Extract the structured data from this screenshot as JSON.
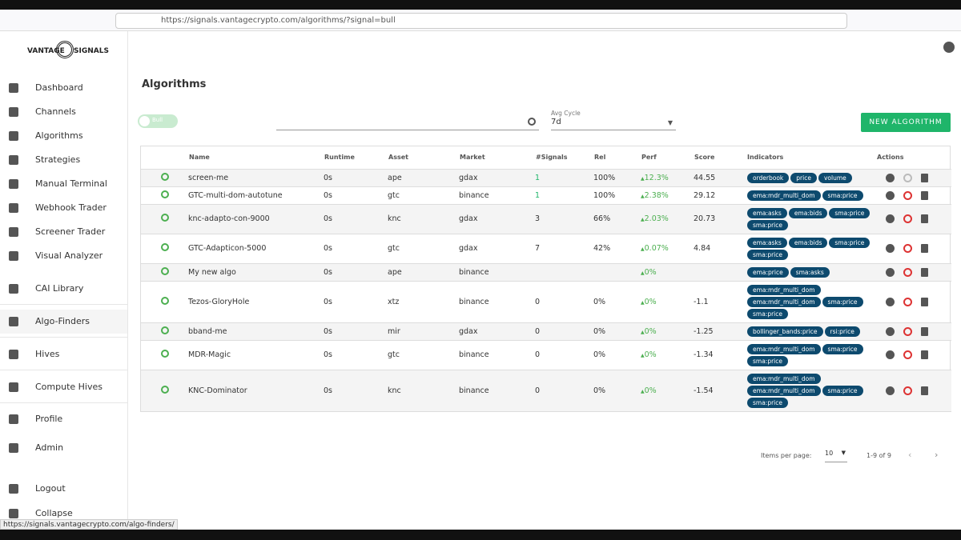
{
  "browser": {
    "url": "https://signals.vantagecrypto.com/algorithms/?signal=bull",
    "status_url": "https://signals.vantagecrypto.com/algo-finders/"
  },
  "logo": {
    "left": "VANTAGE",
    "right": "SIGNALS"
  },
  "sidebar": {
    "items": [
      "Dashboard",
      "Channels",
      "Algorithms",
      "Strategies",
      "Manual Terminal",
      "Webhook Trader",
      "Screener Trader",
      "Visual Analyzer",
      "CAI Library",
      "Algo-Finders",
      "Hives",
      "Compute Hives",
      "Profile",
      "Admin",
      "Logout",
      "Collapse"
    ]
  },
  "header": {
    "title": "Algorithms",
    "toggle_label": "Bull",
    "avg_cycle_label": "Avg Cycle",
    "avg_cycle_value": "7d",
    "new_button": "NEW ALGORITHM"
  },
  "table": {
    "columns": [
      "Name",
      "Runtime",
      "Asset",
      "Market",
      "#Signals",
      "Rel",
      "Perf",
      "Score",
      "Indicators",
      "Actions"
    ],
    "rows": [
      {
        "cells": [
          "screen-me",
          "0s",
          "ape",
          "gdax",
          "1",
          "100%",
          "12.3%",
          "44.55"
        ],
        "indicators": [
          "orderbook",
          "price",
          "volume"
        ]
      },
      {
        "cells": [
          "GTC-multi-dom-autotune",
          "0s",
          "gtc",
          "binance",
          "1",
          "100%",
          "2.38%",
          "29.12"
        ],
        "indicators": [
          "ema:mdr_multi_dom",
          "sma:price"
        ]
      },
      {
        "cells": [
          "knc-adapto-con-9000",
          "0s",
          "knc",
          "gdax",
          "3",
          "66%",
          "2.03%",
          "20.73"
        ],
        "indicators": [
          "ema:asks",
          "ema:bids",
          "sma:price",
          "sma:price"
        ]
      },
      {
        "cells": [
          "GTC-Adapticon-5000",
          "0s",
          "gtc",
          "gdax",
          "7",
          "42%",
          "0.07%",
          "4.84"
        ],
        "indicators": [
          "ema:asks",
          "ema:bids",
          "sma:price",
          "sma:price"
        ]
      },
      {
        "cells": [
          "My new algo",
          "0s",
          "ape",
          "binance",
          null,
          null,
          "0%",
          null
        ],
        "indicators": [
          "ema:price",
          "sma:asks"
        ]
      },
      {
        "cells": [
          "Tezos-GloryHole",
          "0s",
          "xtz",
          "binance",
          "0",
          "0%",
          "0%",
          "-1.1"
        ],
        "indicators": [
          "ema:mdr_multi_dom",
          "ema:mdr_multi_dom",
          "sma:price",
          "sma:price"
        ]
      },
      {
        "cells": [
          "bband-me",
          "0s",
          "mir",
          "gdax",
          "0",
          "0%",
          "0%",
          "-1.25"
        ],
        "indicators": [
          "bollinger_bands:price",
          "rsi:price"
        ]
      },
      {
        "cells": [
          "MDR-Magic",
          "0s",
          "gtc",
          "binance",
          "0",
          "0%",
          "0%",
          "-1.34"
        ],
        "indicators": [
          "ema:mdr_multi_dom",
          "sma:price",
          "sma:price"
        ]
      },
      {
        "cells": [
          "KNC-Dominator",
          "0s",
          "knc",
          "binance",
          "0",
          "0%",
          "0%",
          "-1.54"
        ],
        "indicators": [
          "ema:mdr_multi_dom",
          "ema:mdr_multi_dom",
          "sma:price",
          "sma:price"
        ]
      }
    ]
  },
  "pagination": {
    "items_label": "Items per page:",
    "items_value": "10",
    "range": "1-9 of 9"
  }
}
